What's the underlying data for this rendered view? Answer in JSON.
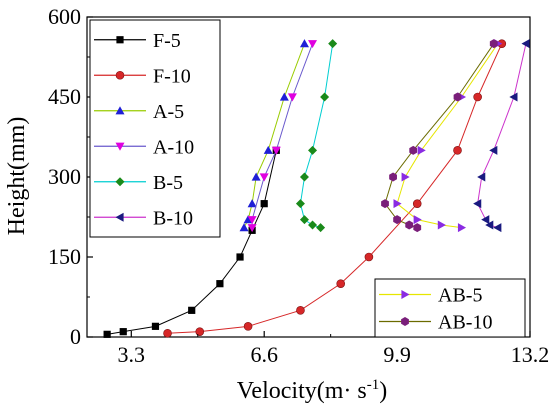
{
  "chart_data": {
    "type": "line",
    "xlabel": "Velocity(m· s",
    "xlabel_sup": "-1",
    "xlabel_end": ")",
    "ylabel": "Height(mm)",
    "xlim": [
      2.2,
      13.2
    ],
    "ylim": [
      0,
      600
    ],
    "xticks": [
      3.3,
      6.6,
      9.9,
      13.2
    ],
    "xtick_labels": [
      "3.3",
      "6.6",
      "9.9",
      "13.2"
    ],
    "yticks": [
      0,
      150,
      300,
      450,
      600
    ],
    "ytick_labels": [
      "0",
      "150",
      "300",
      "450",
      "600"
    ],
    "grid": false,
    "legend_placement": [
      "top-left",
      "bottom-right"
    ],
    "series": [
      {
        "name": "F-5",
        "color": "#000000",
        "marker": "square",
        "x": [
          2.7,
          3.1,
          3.9,
          4.8,
          5.5,
          6.0,
          6.3,
          6.6,
          6.9
        ],
        "y": [
          5,
          10,
          20,
          50,
          100,
          150,
          200,
          250,
          350
        ]
      },
      {
        "name": "F-10",
        "color": "#d62728",
        "marker": "circle",
        "x": [
          4.2,
          5.0,
          6.2,
          7.5,
          8.5,
          9.2,
          10.4,
          11.4,
          11.9,
          12.5
        ],
        "y": [
          7,
          10,
          20,
          50,
          100,
          150,
          250,
          350,
          450,
          550
        ]
      },
      {
        "name": "A-5",
        "color": "#1f1fd6",
        "marker": "triangle-up",
        "x": [
          6.1,
          6.2,
          6.3,
          6.4,
          6.7,
          7.1,
          7.6
        ],
        "y": [
          205,
          220,
          250,
          300,
          350,
          450,
          550
        ]
      },
      {
        "name": "A-10",
        "color": "#e000e0",
        "marker": "triangle-down",
        "x": [
          6.3,
          6.3,
          6.6,
          6.9,
          7.3,
          7.8
        ],
        "y": [
          205,
          220,
          300,
          350,
          450,
          550
        ]
      },
      {
        "name": "B-5",
        "color": "#1a8a1a",
        "marker": "diamond",
        "x": [
          8.0,
          7.8,
          7.6,
          7.5,
          7.6,
          7.8,
          8.1,
          8.3
        ],
        "y": [
          205,
          210,
          220,
          250,
          300,
          350,
          450,
          550
        ]
      },
      {
        "name": "B-10",
        "color": "#1a1a80",
        "marker": "triangle-left",
        "x": [
          12.4,
          12.2,
          12.1,
          11.9,
          12.0,
          12.3,
          12.8,
          13.1
        ],
        "y": [
          205,
          210,
          220,
          250,
          300,
          350,
          450,
          550
        ]
      },
      {
        "name": "AB-5",
        "color": "#8a2be2",
        "marker": "triangle-right",
        "x": [
          11.5,
          11.0,
          10.4,
          9.9,
          10.1,
          10.5,
          11.5,
          12.4
        ],
        "y": [
          205,
          210,
          220,
          250,
          300,
          350,
          450,
          550
        ]
      },
      {
        "name": "AB-10",
        "color": "#7a1f7a",
        "marker": "hexagon",
        "x": [
          10.4,
          10.2,
          9.9,
          9.6,
          9.8,
          10.3,
          11.4,
          12.3
        ],
        "y": [
          205,
          210,
          220,
          250,
          300,
          350,
          450,
          550
        ]
      }
    ],
    "legend_groups": [
      [
        "F-5",
        "F-10",
        "A-5",
        "A-10",
        "B-5",
        "B-10"
      ],
      [
        "AB-5",
        "AB-10"
      ]
    ],
    "legend_line_colors": {
      "F-5": "#000000",
      "F-10": "#d62728",
      "A-5": "#99cc00",
      "A-10": "#6a5acd",
      "B-5": "#00ced1",
      "B-10": "#cc33cc",
      "AB-5": "#e6e600",
      "AB-10": "#6b6b00"
    }
  }
}
